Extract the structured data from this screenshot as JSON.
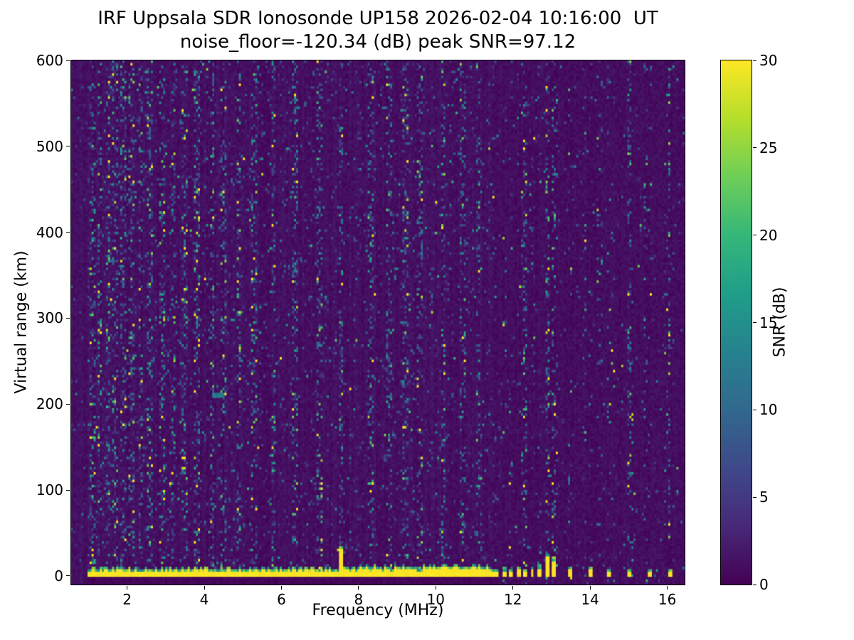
{
  "figure": {
    "station": "UP158",
    "datetime_ut": "2026-02-04 10:16:00",
    "noise_floor_db": -120.34,
    "peak_snr_db": 97.12
  },
  "chart_data": {
    "type": "heatmap",
    "title": "IRF Uppsala SDR Ionosonde UP158 2026-02-04 10:16:00  UT",
    "subtitle": "noise_floor=-120.34 (dB) peak SNR=97.12",
    "xlabel": "Frequency (MHz)",
    "ylabel": "Virtual range (km)",
    "xlim": [
      0.55,
      16.45
    ],
    "ylim": [
      -10,
      600
    ],
    "xticks": [
      2,
      4,
      6,
      8,
      10,
      12,
      14,
      16
    ],
    "yticks": [
      0,
      100,
      200,
      300,
      400,
      500,
      600
    ],
    "grid": false,
    "colorbar": {
      "label": "SNR (dB)",
      "min": 0,
      "max": 30,
      "ticks": [
        0,
        5,
        10,
        15,
        20,
        25,
        30
      ],
      "colormap": "viridis"
    },
    "colormap_stops": [
      "#440154",
      "#482878",
      "#3e4989",
      "#31688e",
      "#26828e",
      "#1f9e89",
      "#35b779",
      "#6ece58",
      "#b5de2b",
      "#fde725"
    ],
    "features": {
      "background_snr_db": [
        0,
        2
      ],
      "speckle_snr_db": [
        4,
        22
      ],
      "ground_return": {
        "freq_mhz": [
          0.95,
          11.62
        ],
        "range_km": [
          -2,
          9
        ],
        "snr_db": 30
      },
      "spike": {
        "freq_mhz": 7.55,
        "range_km": [
          -2,
          35
        ],
        "snr_db": 30
      },
      "echo_streak": {
        "freq_mhz": [
          4.2,
          4.55
        ],
        "range_km": 210,
        "snr_db": 12
      },
      "interference_bursts": [
        {
          "f": 11.78,
          "h": 10
        },
        {
          "f": 11.96,
          "h": 9
        },
        {
          "f": 12.14,
          "h": 11
        },
        {
          "f": 12.32,
          "h": 9
        },
        {
          "f": 12.5,
          "h": 11
        },
        {
          "f": 12.68,
          "h": 13
        },
        {
          "f": 12.88,
          "h": 27
        },
        {
          "f": 13.06,
          "h": 22
        },
        {
          "f": 13.5,
          "h": 11
        },
        {
          "f": 14.0,
          "h": 11
        },
        {
          "f": 14.5,
          "h": 9
        },
        {
          "f": 15.0,
          "h": 9
        },
        {
          "f": 15.55,
          "h": 9
        },
        {
          "f": 16.1,
          "h": 9
        }
      ],
      "noisy_columns_mhz": [
        1.1,
        1.3,
        1.5,
        1.7,
        1.9,
        2.1,
        2.35,
        2.6,
        2.9,
        3.2,
        3.5,
        3.8,
        4.2,
        4.5,
        4.9,
        5.3,
        5.8,
        6.35,
        7.0,
        7.55,
        8.3,
        8.8,
        9.2,
        9.6,
        10.2,
        10.7,
        11.1,
        12.3,
        12.9,
        13.1,
        13.85,
        14.25,
        14.6,
        15.05,
        15.45,
        16.0
      ]
    }
  }
}
